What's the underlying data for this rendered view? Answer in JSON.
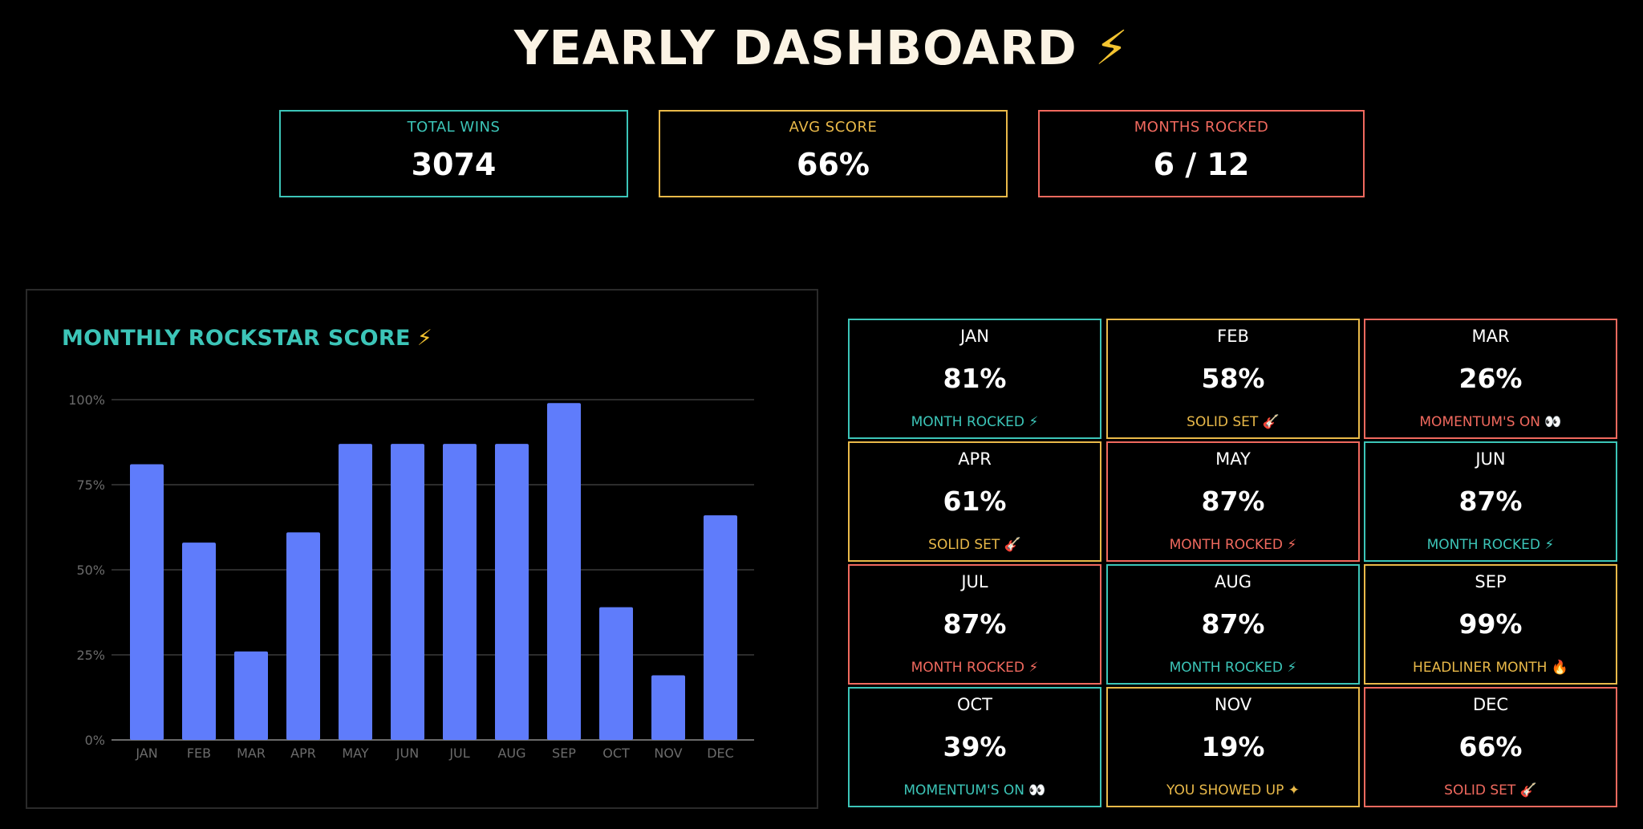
{
  "header": {
    "title": "YEARLY DASHBOARD",
    "bolt": "⚡"
  },
  "stats": [
    {
      "label": "TOTAL WINS",
      "value": "3074",
      "color": "#3cc5b8"
    },
    {
      "label": "AVG SCORE",
      "value": "66%",
      "color": "#e9b949"
    },
    {
      "label": "MONTHS ROCKED",
      "value": "6 / 12",
      "color": "#f0695e"
    }
  ],
  "chart_data": {
    "type": "bar",
    "title": "MONTHLY ROCKSTAR SCORE",
    "title_icon": "⚡",
    "categories": [
      "JAN",
      "FEB",
      "MAR",
      "APR",
      "MAY",
      "JUN",
      "JUL",
      "AUG",
      "SEP",
      "OCT",
      "NOV",
      "DEC"
    ],
    "values": [
      81,
      58,
      26,
      61,
      87,
      87,
      87,
      87,
      99,
      39,
      19,
      66
    ],
    "ylim": [
      0,
      100
    ],
    "yticks": [
      "0%",
      "25%",
      "50%",
      "75%",
      "100%"
    ],
    "grid": true,
    "bar_color": "#5f7cfb"
  },
  "month_cards": [
    {
      "month": "JAN",
      "value": "81%",
      "tag": "MONTH ROCKED ⚡",
      "color": "#3cc5b8"
    },
    {
      "month": "FEB",
      "value": "58%",
      "tag": "SOLID SET 🎸",
      "color": "#e9b949"
    },
    {
      "month": "MAR",
      "value": "26%",
      "tag": "MOMENTUM'S ON 👀",
      "color": "#f0695e"
    },
    {
      "month": "APR",
      "value": "61%",
      "tag": "SOLID SET 🎸",
      "color": "#e9b949"
    },
    {
      "month": "MAY",
      "value": "87%",
      "tag": "MONTH ROCKED ⚡",
      "color": "#f0695e"
    },
    {
      "month": "JUN",
      "value": "87%",
      "tag": "MONTH ROCKED ⚡",
      "color": "#3cc5b8"
    },
    {
      "month": "JUL",
      "value": "87%",
      "tag": "MONTH ROCKED ⚡",
      "color": "#f0695e"
    },
    {
      "month": "AUG",
      "value": "87%",
      "tag": "MONTH ROCKED ⚡",
      "color": "#3cc5b8"
    },
    {
      "month": "SEP",
      "value": "99%",
      "tag": "HEADLINER MONTH 🔥",
      "color": "#e9b949"
    },
    {
      "month": "OCT",
      "value": "39%",
      "tag": "MOMENTUM'S ON 👀",
      "color": "#3cc5b8"
    },
    {
      "month": "NOV",
      "value": "19%",
      "tag": "YOU SHOWED UP ✦",
      "color": "#e9b949"
    },
    {
      "month": "DEC",
      "value": "66%",
      "tag": "SOLID SET 🎸",
      "color": "#f0695e"
    }
  ]
}
